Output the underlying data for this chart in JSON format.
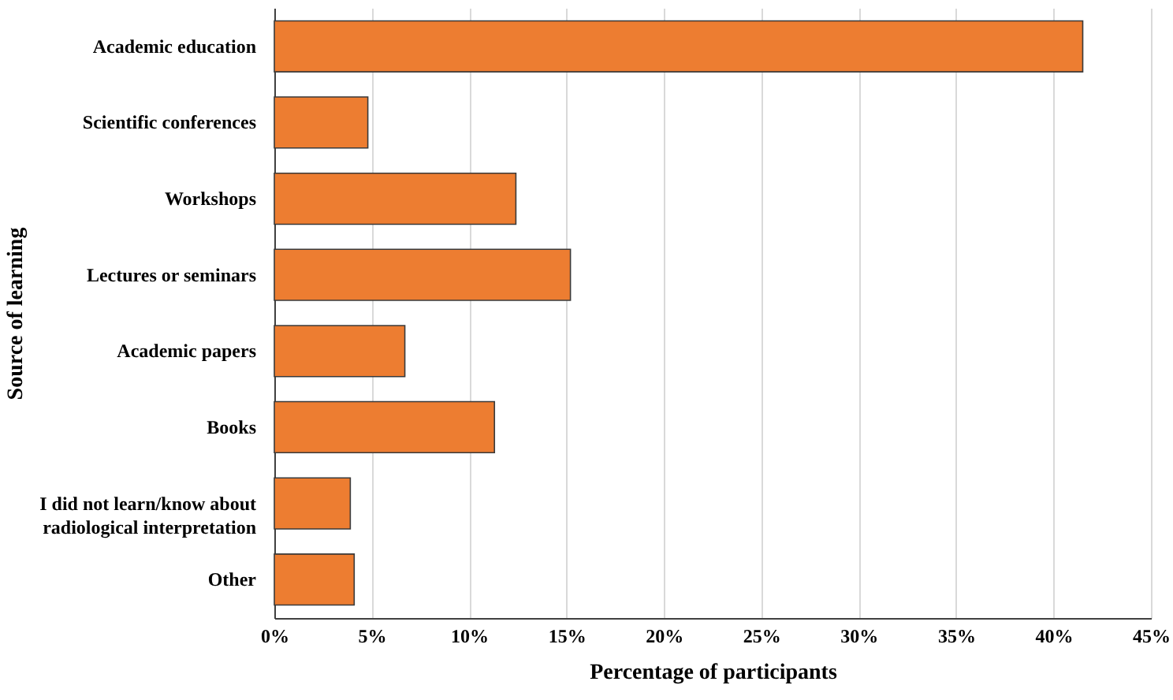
{
  "chart_data": {
    "type": "bar",
    "orientation": "horizontal",
    "xlabel": "Percentage of participants",
    "ylabel": "Source of learning",
    "categories": [
      "Academic education",
      "Scientific conferences",
      "Workshops",
      "Lectures or seminars",
      "Academic papers",
      "Books",
      "I did not learn/know about\nradiological interpretation",
      "Other"
    ],
    "values": [
      41.5,
      4.8,
      12.4,
      15.2,
      6.7,
      11.3,
      3.9,
      4.1
    ],
    "color": "#ed7d31",
    "xlim": [
      0,
      45
    ],
    "xticks": [
      {
        "value": 0,
        "label": "0%"
      },
      {
        "value": 5,
        "label": "5%"
      },
      {
        "value": 10,
        "label": "10%"
      },
      {
        "value": 15,
        "label": "15%"
      },
      {
        "value": 20,
        "label": "20%"
      },
      {
        "value": 25,
        "label": "25%"
      },
      {
        "value": 30,
        "label": "30%"
      },
      {
        "value": 35,
        "label": "35%"
      },
      {
        "value": 40,
        "label": "40%"
      },
      {
        "value": 45,
        "label": "45%"
      }
    ],
    "grid": "x"
  }
}
